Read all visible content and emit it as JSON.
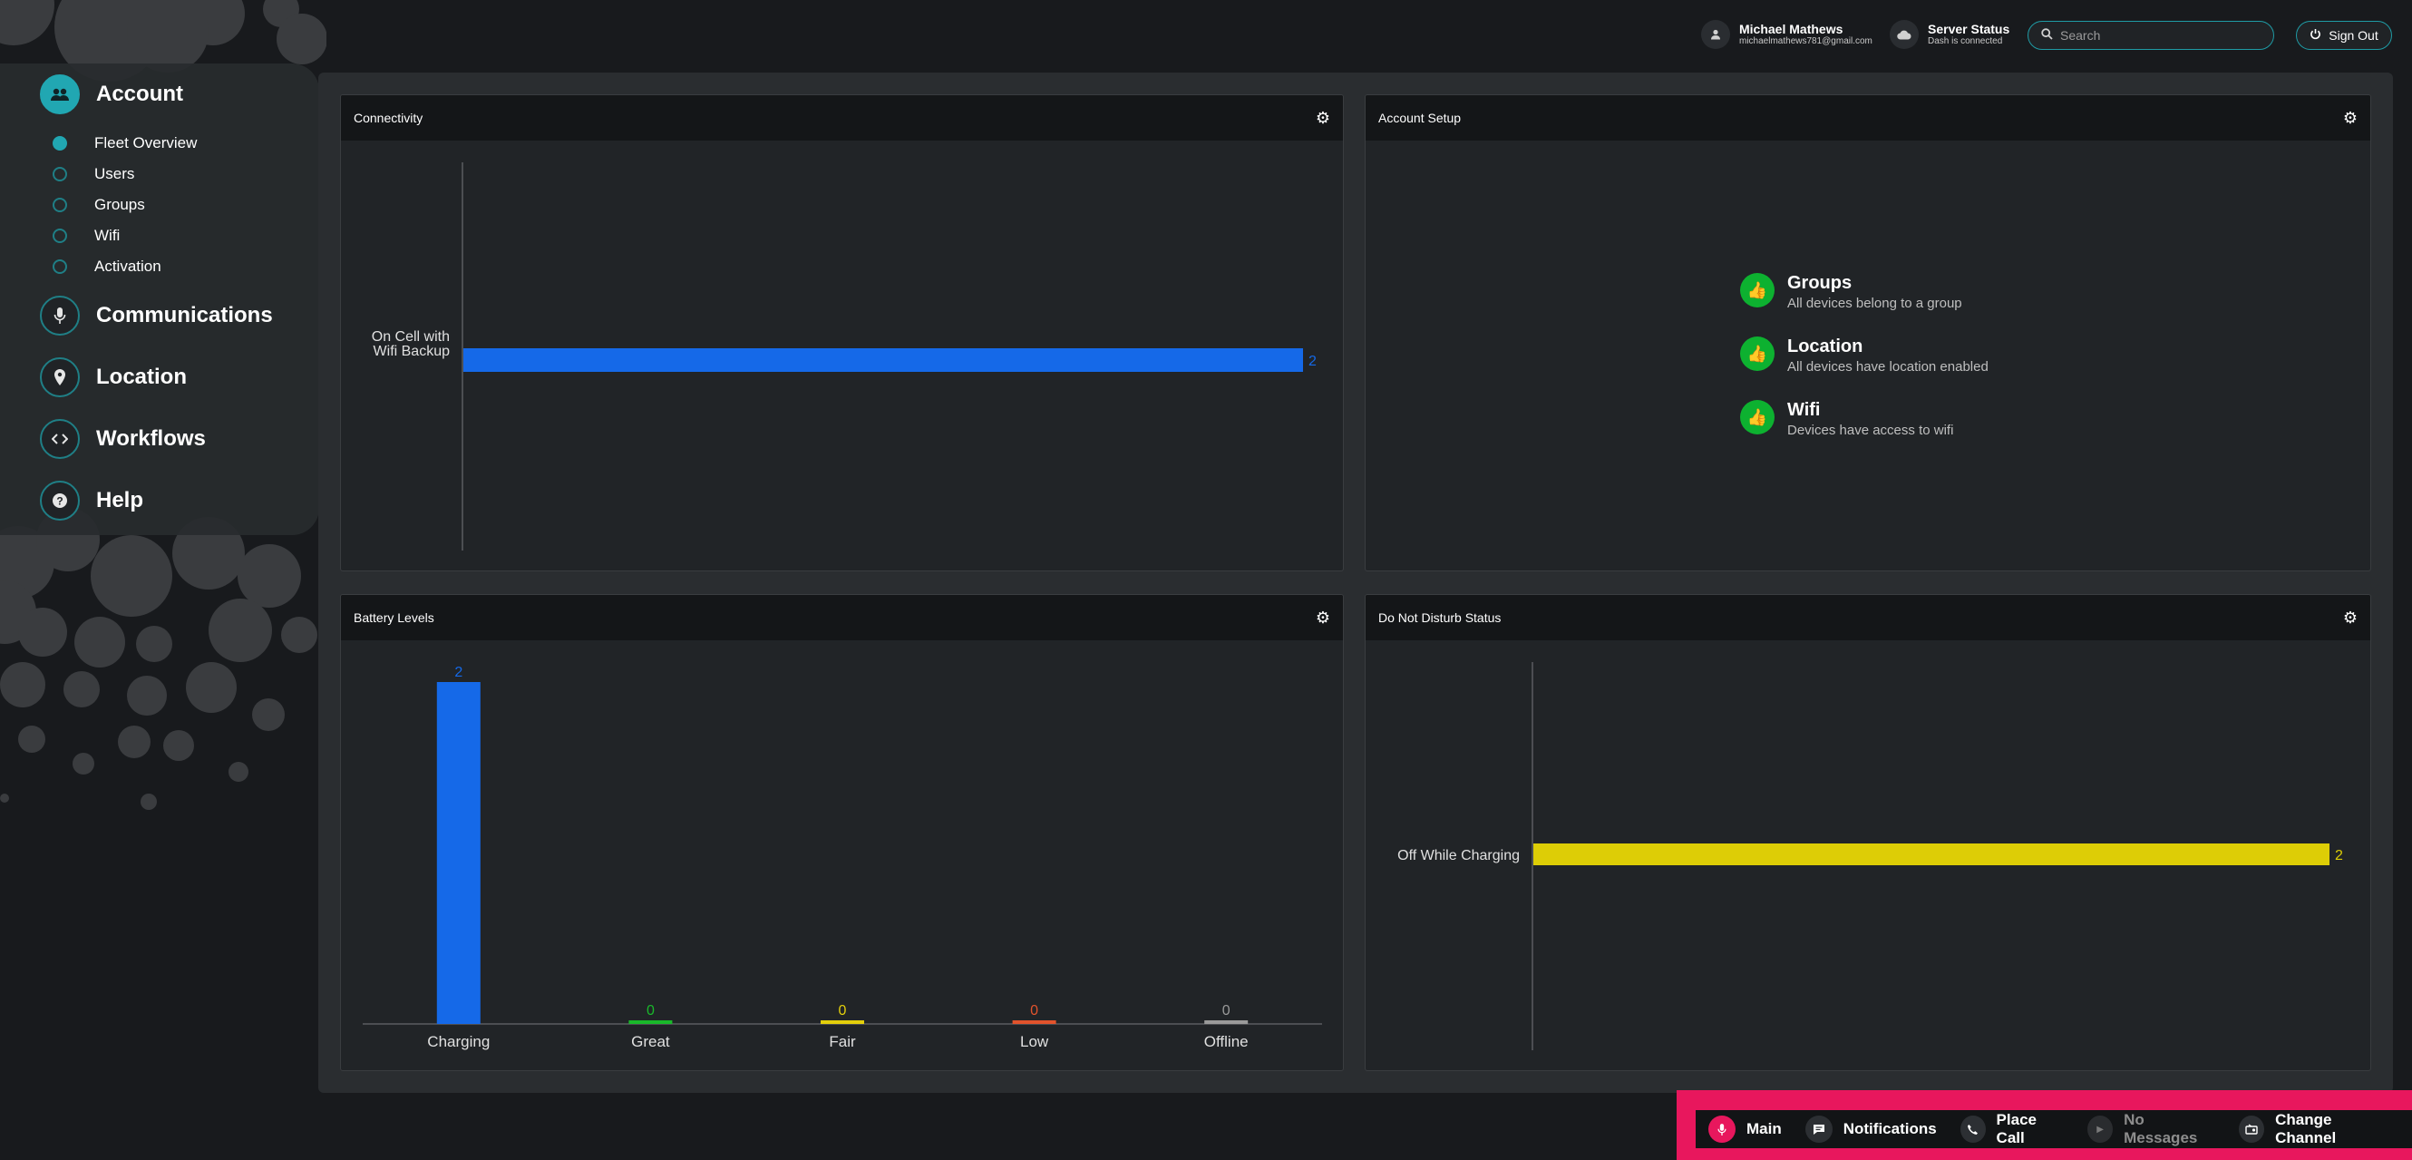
{
  "user": {
    "name": "Michael Mathews",
    "email": "michaelmathews781@gmail.com"
  },
  "server": {
    "title": "Server Status",
    "status": "Dash is connected"
  },
  "search": {
    "placeholder": "Search"
  },
  "signout_label": "Sign Out",
  "sidebar": {
    "sections": [
      {
        "label": "Account",
        "icon": "people-icon",
        "active": true
      },
      {
        "label": "Communications",
        "icon": "microphone-icon"
      },
      {
        "label": "Location",
        "icon": "pin-icon"
      },
      {
        "label": "Workflows",
        "icon": "code-icon"
      },
      {
        "label": "Help",
        "icon": "help-icon"
      }
    ],
    "account_items": [
      {
        "label": "Fleet Overview",
        "active": true
      },
      {
        "label": "Users"
      },
      {
        "label": "Groups"
      },
      {
        "label": "Wifi"
      },
      {
        "label": "Activation"
      }
    ]
  },
  "cards": {
    "connectivity": {
      "title": "Connectivity"
    },
    "account_setup": {
      "title": "Account Setup",
      "items": [
        {
          "title": "Groups",
          "desc": "All devices belong to a group"
        },
        {
          "title": "Location",
          "desc": "All devices have location enabled"
        },
        {
          "title": "Wifi",
          "desc": "Devices have access to wifi"
        }
      ]
    },
    "battery": {
      "title": "Battery Levels"
    },
    "dnd": {
      "title": "Do Not Disturb Status"
    }
  },
  "chart_data": [
    {
      "type": "bar",
      "orientation": "horizontal",
      "title": "Connectivity",
      "categories": [
        "On Cell with Wifi Backup"
      ],
      "values": [
        2
      ],
      "colors": [
        "#1569e8"
      ]
    },
    {
      "type": "bar",
      "orientation": "vertical",
      "title": "Battery Levels",
      "categories": [
        "Charging",
        "Great",
        "Fair",
        "Low",
        "Offline"
      ],
      "values": [
        2,
        0,
        0,
        0,
        0
      ],
      "colors": [
        "#1569e8",
        "#19b92a",
        "#e3cf0b",
        "#e2532c",
        "#9a9a9a"
      ]
    },
    {
      "type": "bar",
      "orientation": "horizontal",
      "title": "Do Not Disturb Status",
      "categories": [
        "Off While Charging"
      ],
      "values": [
        2
      ],
      "colors": [
        "#ddcd06"
      ]
    }
  ],
  "bottom_bar": {
    "items": [
      {
        "label": "Main",
        "icon": "microphone-icon"
      },
      {
        "label": "Notifications",
        "icon": "chat-icon"
      },
      {
        "label": "Place Call",
        "icon": "phone-icon"
      },
      {
        "label": "No Messages",
        "icon": "play-icon"
      },
      {
        "label": "Change Channel",
        "icon": "channel-icon"
      }
    ]
  }
}
